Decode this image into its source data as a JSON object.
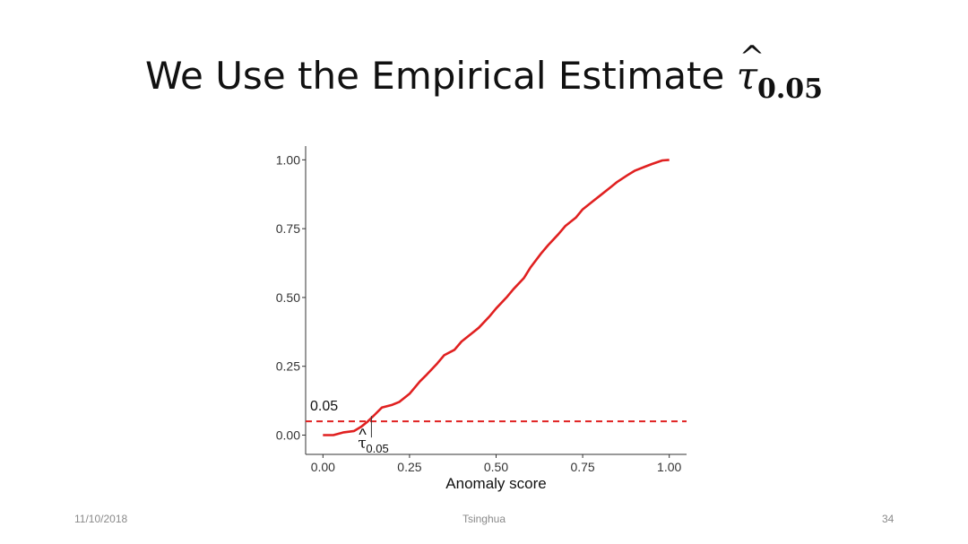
{
  "slide": {
    "title_text": "We Use the Empirical Estimate ",
    "title_symbol": "τ",
    "title_hat": "^",
    "title_subscript": "0.05",
    "date": "11/10/2018",
    "organization": "Tsinghua",
    "page_number": "34"
  },
  "chart_data": {
    "type": "line",
    "title": "",
    "xlabel": "Anomaly score",
    "ylabel": "",
    "xlim": [
      -0.05,
      1.05
    ],
    "ylim": [
      -0.07,
      1.05
    ],
    "x_ticks": [
      0.0,
      0.25,
      0.5,
      0.75,
      1.0
    ],
    "x_tick_labels": [
      "0.00",
      "0.25",
      "0.50",
      "0.75",
      "1.00"
    ],
    "y_ticks": [
      0.0,
      0.25,
      0.5,
      0.75,
      1.0
    ],
    "y_tick_labels": [
      "0.00",
      "0.25",
      "0.50",
      "0.75",
      "1.00"
    ],
    "grid": false,
    "series": [
      {
        "color": "#e02020",
        "x": [
          0.0,
          0.03,
          0.06,
          0.09,
          0.11,
          0.13,
          0.15,
          0.17,
          0.2,
          0.22,
          0.25,
          0.28,
          0.3,
          0.33,
          0.35,
          0.38,
          0.4,
          0.43,
          0.45,
          0.48,
          0.5,
          0.53,
          0.55,
          0.58,
          0.6,
          0.63,
          0.65,
          0.68,
          0.7,
          0.73,
          0.75,
          0.78,
          0.8,
          0.83,
          0.85,
          0.88,
          0.9,
          0.93,
          0.95,
          0.98,
          1.0
        ],
        "y": [
          0.0,
          0.0,
          0.01,
          0.015,
          0.03,
          0.05,
          0.075,
          0.1,
          0.11,
          0.12,
          0.15,
          0.195,
          0.22,
          0.26,
          0.29,
          0.31,
          0.34,
          0.37,
          0.39,
          0.43,
          0.46,
          0.5,
          0.53,
          0.57,
          0.61,
          0.66,
          0.69,
          0.73,
          0.76,
          0.79,
          0.82,
          0.85,
          0.87,
          0.9,
          0.92,
          0.945,
          0.96,
          0.975,
          0.985,
          0.998,
          1.0
        ]
      }
    ],
    "reference_line": {
      "y": 0.05,
      "label": "0.05",
      "color": "#e02020",
      "style": "dashed"
    },
    "threshold_marker": {
      "x": 0.14,
      "label_symbol": "τ",
      "label_hat": "^",
      "label_subscript": "0.05"
    }
  }
}
